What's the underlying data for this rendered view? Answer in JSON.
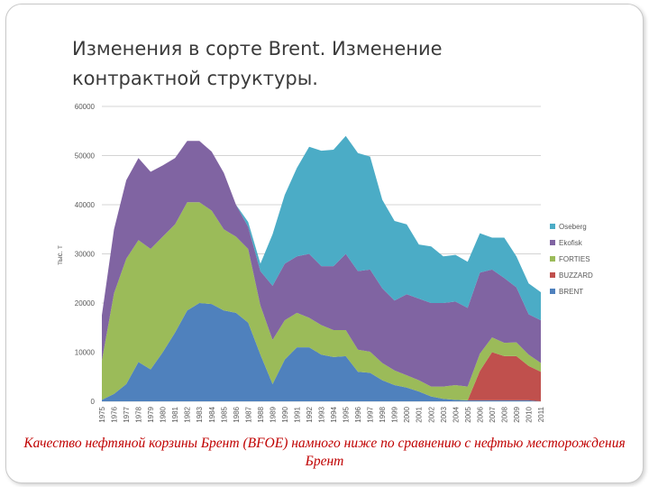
{
  "slide": {
    "title": "Изменения в сорте Brent. Изменение контрактной структуры.",
    "caption": "Качество нефтяной корзины Брент (BFOE) намного ниже по сравнению с нефтью месторождения Брент"
  },
  "chart_data": {
    "type": "area",
    "stacked": true,
    "title": "",
    "xlabel": "",
    "ylabel": "тыс. т",
    "ylim": [
      0,
      60000
    ],
    "yticks": [
      0,
      10000,
      20000,
      30000,
      40000,
      50000,
      60000
    ],
    "grid": true,
    "legend_position": "right",
    "x": [
      "1975",
      "1976",
      "1977",
      "1978",
      "1979",
      "1980",
      "1981",
      "1982",
      "1983",
      "1984",
      "1985",
      "1986",
      "1987",
      "1988",
      "1989",
      "1990",
      "1991",
      "1992",
      "1993",
      "1994",
      "1995",
      "1996",
      "1997",
      "1998",
      "1999",
      "2000",
      "2001",
      "2002",
      "2003",
      "2004",
      "2005",
      "2006",
      "2007",
      "2008",
      "2009",
      "2010",
      "2011"
    ],
    "series": [
      {
        "name": "BRENT",
        "color": "#4f81bd",
        "values": [
          300,
          1500,
          3500,
          8000,
          6500,
          10000,
          14000,
          18500,
          20000,
          19800,
          18500,
          18000,
          16000,
          9500,
          3500,
          8500,
          11000,
          11000,
          9500,
          9000,
          9200,
          6000,
          5800,
          4300,
          3300,
          2800,
          2000,
          1000,
          500,
          300,
          200,
          200,
          200,
          200,
          200,
          200,
          0
        ]
      },
      {
        "name": "BUZZARD",
        "color": "#c0504d",
        "values": [
          0,
          0,
          0,
          0,
          0,
          0,
          0,
          0,
          0,
          0,
          0,
          0,
          0,
          0,
          0,
          0,
          0,
          0,
          0,
          0,
          0,
          0,
          0,
          0,
          0,
          0,
          0,
          0,
          0,
          0,
          0,
          6000,
          9800,
          9000,
          9000,
          7000,
          6000
        ]
      },
      {
        "name": "FORTIES",
        "color": "#9bbb59",
        "values": [
          8000,
          20500,
          25500,
          24800,
          24500,
          23500,
          22000,
          22000,
          20500,
          19000,
          16500,
          15500,
          15000,
          10000,
          9000,
          8000,
          7000,
          6000,
          6000,
          5500,
          5300,
          4500,
          4300,
          3500,
          3000,
          2500,
          2300,
          2000,
          2500,
          3000,
          2800,
          3500,
          3000,
          2700,
          2800,
          2300,
          1800
        ]
      },
      {
        "name": "Ekofisk",
        "color": "#8064a2",
        "values": [
          9200,
          13000,
          16000,
          16700,
          15700,
          14500,
          13500,
          12500,
          12500,
          12000,
          11500,
          6500,
          4500,
          7000,
          11000,
          11500,
          11500,
          13000,
          12000,
          13000,
          15500,
          16000,
          16700,
          15200,
          14200,
          16500,
          16600,
          17000,
          17000,
          17000,
          16000,
          16500,
          13800,
          13200,
          11200,
          8200,
          8700
        ]
      },
      {
        "name": "Oseberg",
        "color": "#4bacc6",
        "values": [
          0,
          0,
          0,
          0,
          0,
          0,
          0,
          0,
          0,
          0,
          0,
          0,
          1000,
          1500,
          10500,
          14000,
          18000,
          21800,
          23500,
          23700,
          24000,
          24000,
          23000,
          18000,
          16200,
          14200,
          11000,
          11500,
          9500,
          9500,
          9400,
          8000,
          6500,
          8200,
          6300,
          6300,
          5700
        ]
      }
    ]
  }
}
